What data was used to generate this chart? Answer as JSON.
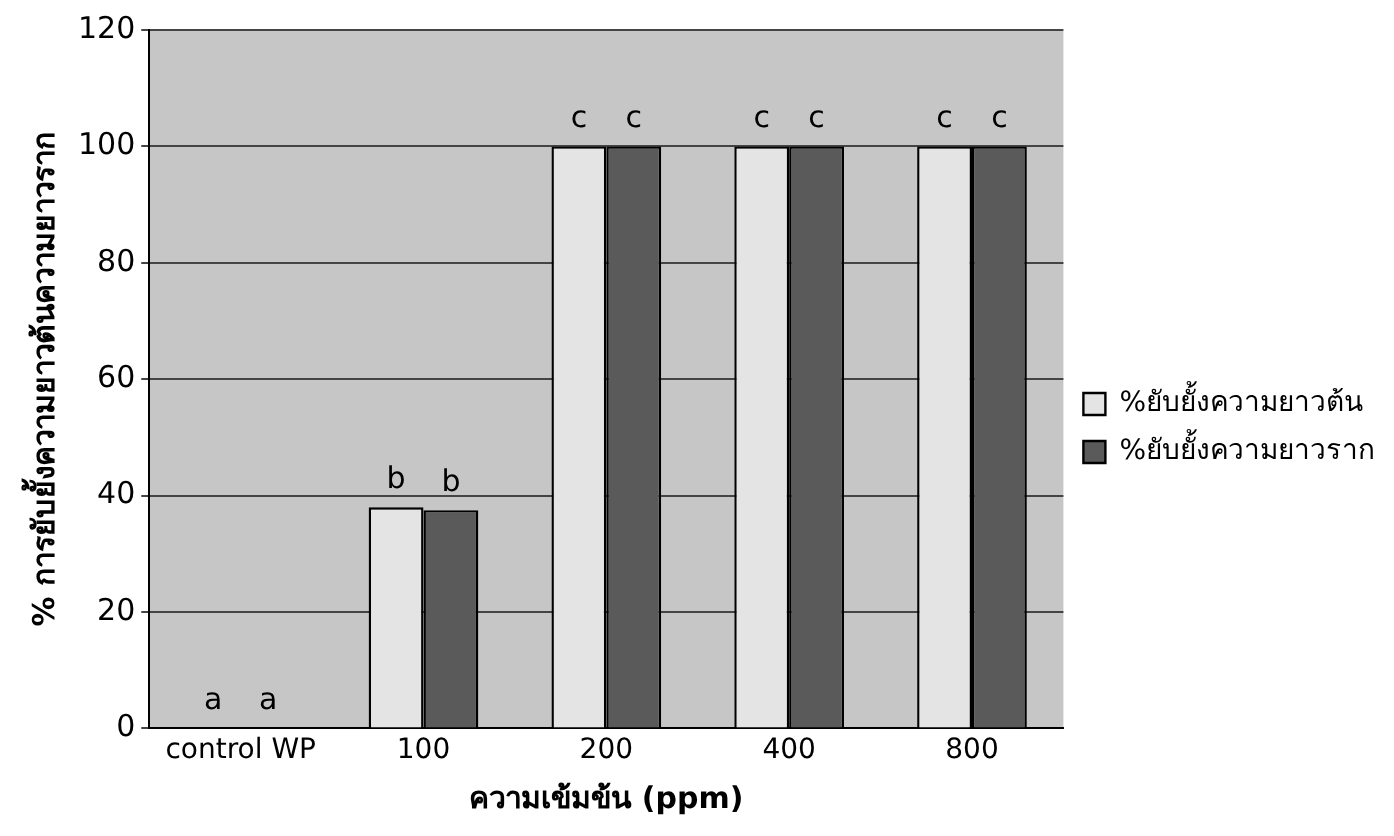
{
  "chart_data": {
    "type": "bar",
    "xlabel": "ความเข้มข้น (ppm)",
    "ylabel": "% การยับยั้งความยาวต้นความยาวราก",
    "categories": [
      "control WP",
      "100",
      "200",
      "400",
      "800"
    ],
    "series": [
      {
        "name": "%ยับยั้งความยาวต้น",
        "color": "#e4e4e4",
        "values": [
          0,
          38,
          100,
          100,
          100
        ]
      },
      {
        "name": "%ยับยั้งความยาวราก",
        "color": "#5a5a5a",
        "values": [
          0,
          37.5,
          100,
          100,
          100
        ]
      }
    ],
    "ylim": [
      0,
      120
    ],
    "yticks": [
      0,
      20,
      40,
      60,
      80,
      100,
      120
    ],
    "grid": "y",
    "legend": "right",
    "annotations": [
      "a",
      "a",
      "b",
      "b",
      "c",
      "c",
      "c",
      "c",
      "c",
      "c"
    ]
  }
}
